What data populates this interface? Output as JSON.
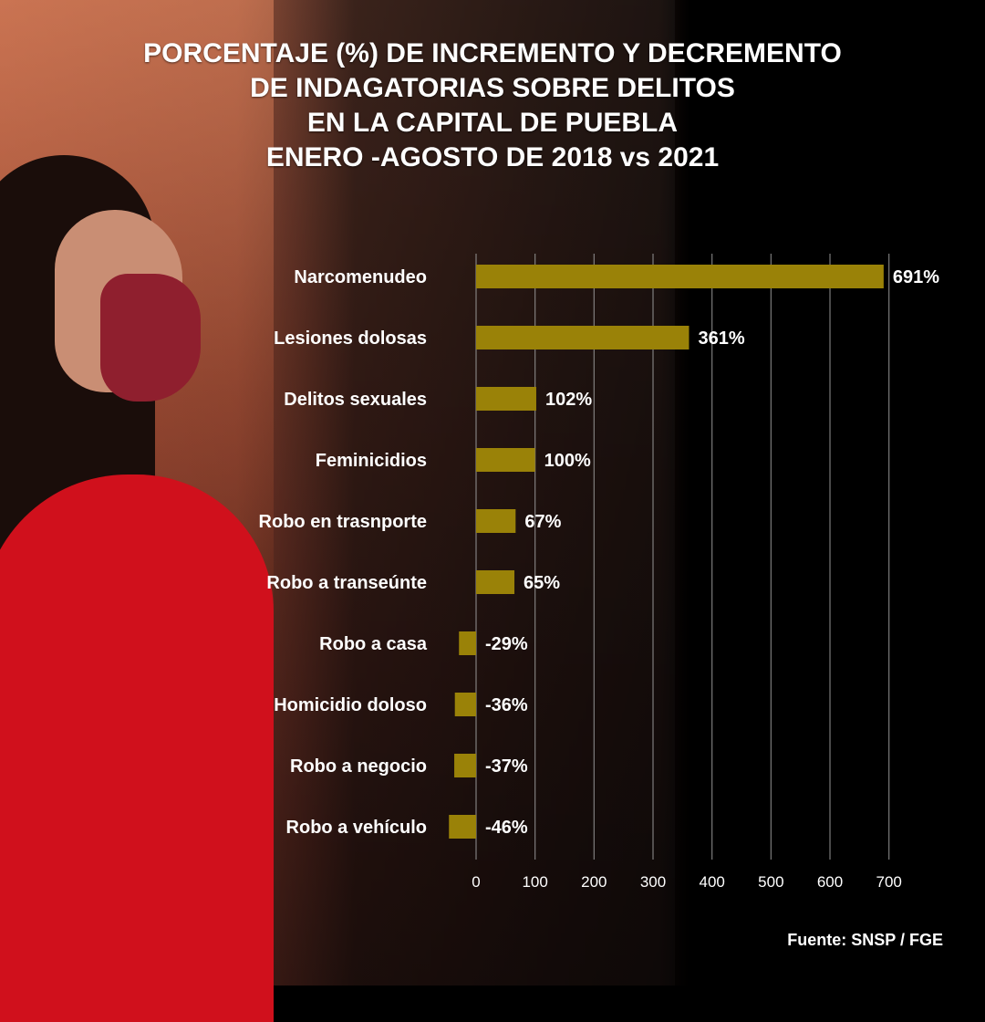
{
  "title_lines": [
    "PORCENTAJE (%) DE INCREMENTO Y DECREMENTO",
    "DE INDAGATORIAS SOBRE DELITOS",
    "EN LA CAPITAL DE PUEBLA",
    "ENERO -AGOSTO DE 2018 vs 2021"
  ],
  "source": "Fuente: SNSP / FGE",
  "colors": {
    "bar": "#9a8208",
    "background": "#000000",
    "text": "#ffffff"
  },
  "chart_data": {
    "type": "bar",
    "orientation": "horizontal",
    "categories": [
      "Narcomenudeo",
      "Lesiones dolosas",
      "Delitos sexuales",
      "Feminicidios",
      "Robo en trasnporte",
      "Robo a transeúnte",
      "Robo a casa",
      "Homicidio doloso",
      "Robo a negocio",
      "Robo a vehículo"
    ],
    "values": [
      691,
      361,
      102,
      100,
      67,
      65,
      -29,
      -36,
      -37,
      -46
    ],
    "value_labels": [
      "691%",
      "361%",
      "102%",
      "100%",
      "67%",
      "65%",
      "-29%",
      "-36%",
      "-37%",
      "-46%"
    ],
    "x_ticks": [
      "0",
      "100",
      "200",
      "300",
      "400",
      "500",
      "600",
      "700"
    ],
    "xlim": [
      -46,
      700
    ],
    "grid": true,
    "legend": "none"
  }
}
